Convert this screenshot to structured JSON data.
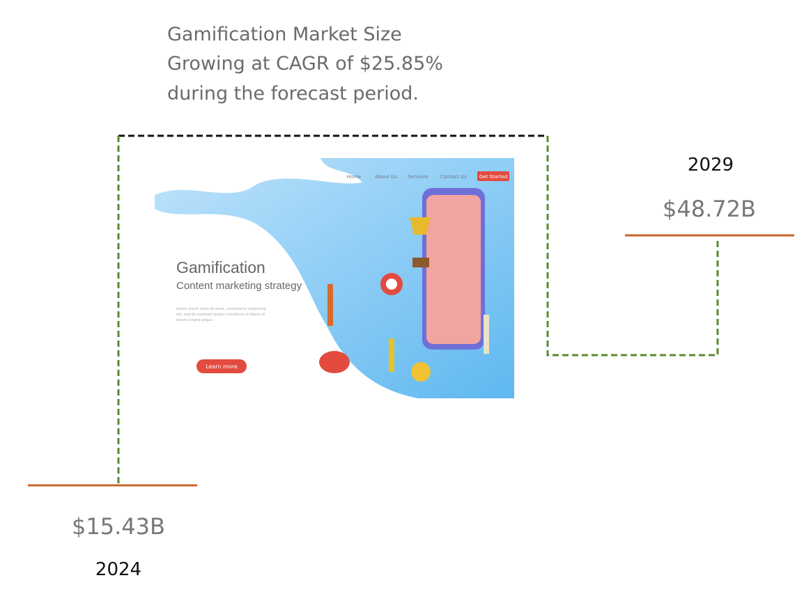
{
  "headline": {
    "lines": [
      "Gamification Market Size",
      "Growing at CAGR of $25.85%",
      "during the forecast period."
    ]
  },
  "start": {
    "year": "2024",
    "value": "$15.43B"
  },
  "end": {
    "year": "2029",
    "value": "$48.72B"
  },
  "illustration": {
    "nav": [
      "Home",
      "About Us",
      "Services",
      "Contact Us"
    ],
    "cta": "Get Started",
    "title": "Gamification",
    "subtitle": "Content marketing strategy",
    "body": "Lorem ipsum dolor sit amet, consectetur adipiscing elit, sed do eiusmod tempor incididunt ut labore et dolore magna aliqua.",
    "button": "Learn more"
  }
}
